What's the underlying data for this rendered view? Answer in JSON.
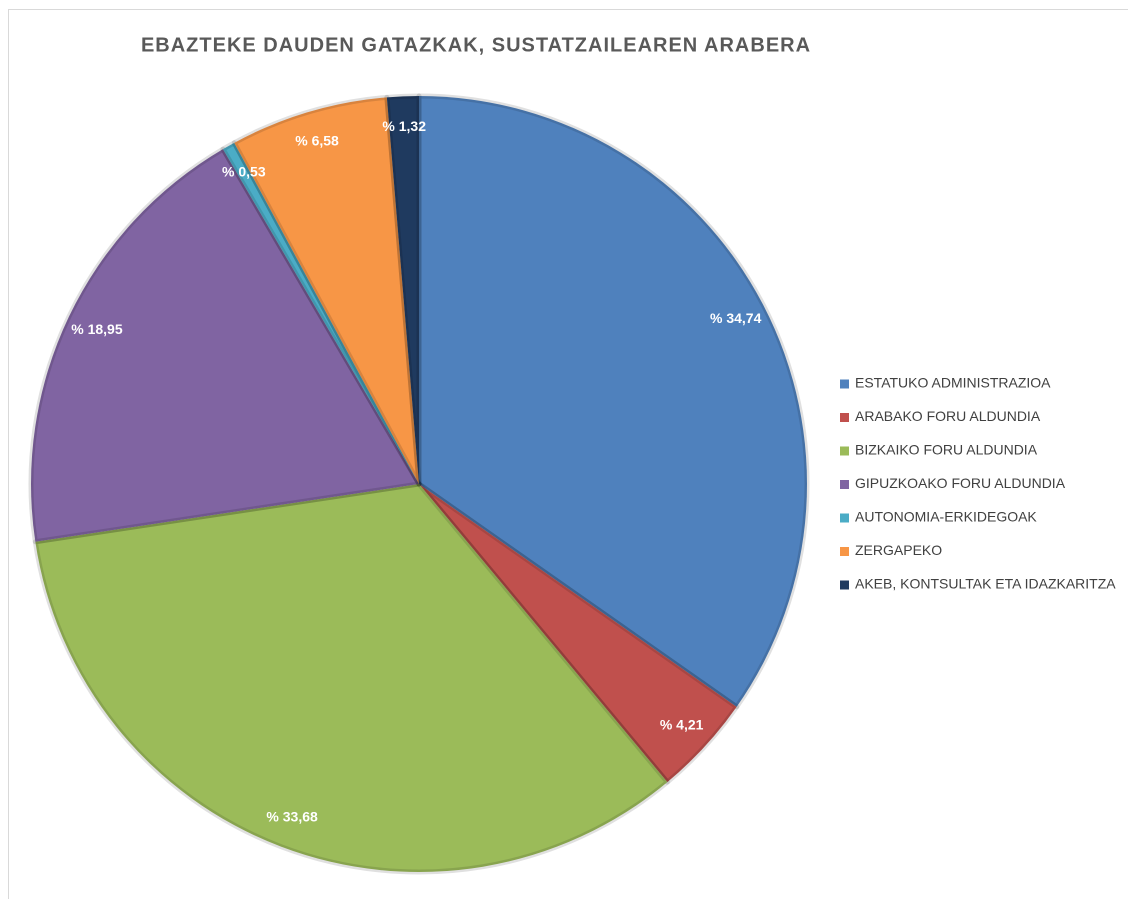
{
  "chart_data": {
    "type": "pie",
    "title": "EBAZTEKE DAUDEN GATAZKAK, SUSTATZAILEAREN ARABERA",
    "categories": [
      "ESTATUKO ADMINISTRAZIOA",
      "ARABAKO FORU ALDUNDIA",
      "BIZKAIKO FORU ALDUNDIA",
      "GIPUZKOAKO FORU ALDUNDIA",
      "AUTONOMIA-ERKIDEGOAK",
      "ZERGAPEKO",
      "AKEB, KONTSULTAK ETA IDAZKARITZA"
    ],
    "values": [
      34.74,
      4.21,
      33.68,
      18.95,
      0.53,
      6.58,
      1.32
    ],
    "value_labels": [
      "% 34,74",
      "% 4,21",
      "% 33,68",
      "% 18,95",
      "% 0,53",
      "% 6,58",
      "% 1,32"
    ],
    "colors": [
      "#4f81bd",
      "#c0504d",
      "#9bbb59",
      "#8064a2",
      "#4bacc6",
      "#f79646",
      "#1f3a5f"
    ],
    "legend": "right"
  }
}
